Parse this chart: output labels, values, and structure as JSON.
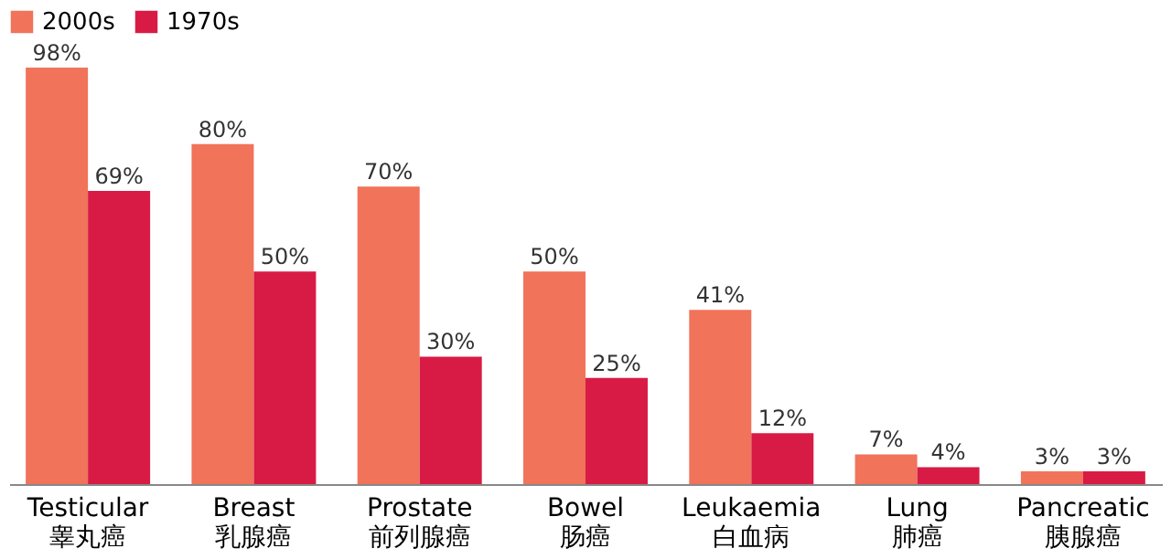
{
  "chart_data": {
    "type": "bar",
    "categories": [
      "Testicular\n睾丸癌",
      "Breast\n乳腺癌",
      "Prostate\n前列腺癌",
      "Bowel\n肠癌",
      "Leukaemia\n白血病",
      "Lung\n肺癌",
      "Pancreatic\n胰腺癌"
    ],
    "series": [
      {
        "name": "2000s",
        "color": "#f0735a",
        "values": [
          98,
          80,
          70,
          50,
          41,
          7,
          3
        ],
        "value_labels": [
          "98%",
          "80%",
          "70%",
          "50%",
          "41%",
          "7%",
          "3%"
        ]
      },
      {
        "name": "1970s",
        "color": "#d81b45",
        "values": [
          69,
          50,
          30,
          25,
          12,
          4,
          3
        ],
        "value_labels": [
          "69%",
          "50%",
          "30%",
          "25%",
          "12%",
          "4%",
          "3%"
        ]
      }
    ],
    "legend": "top"
  }
}
